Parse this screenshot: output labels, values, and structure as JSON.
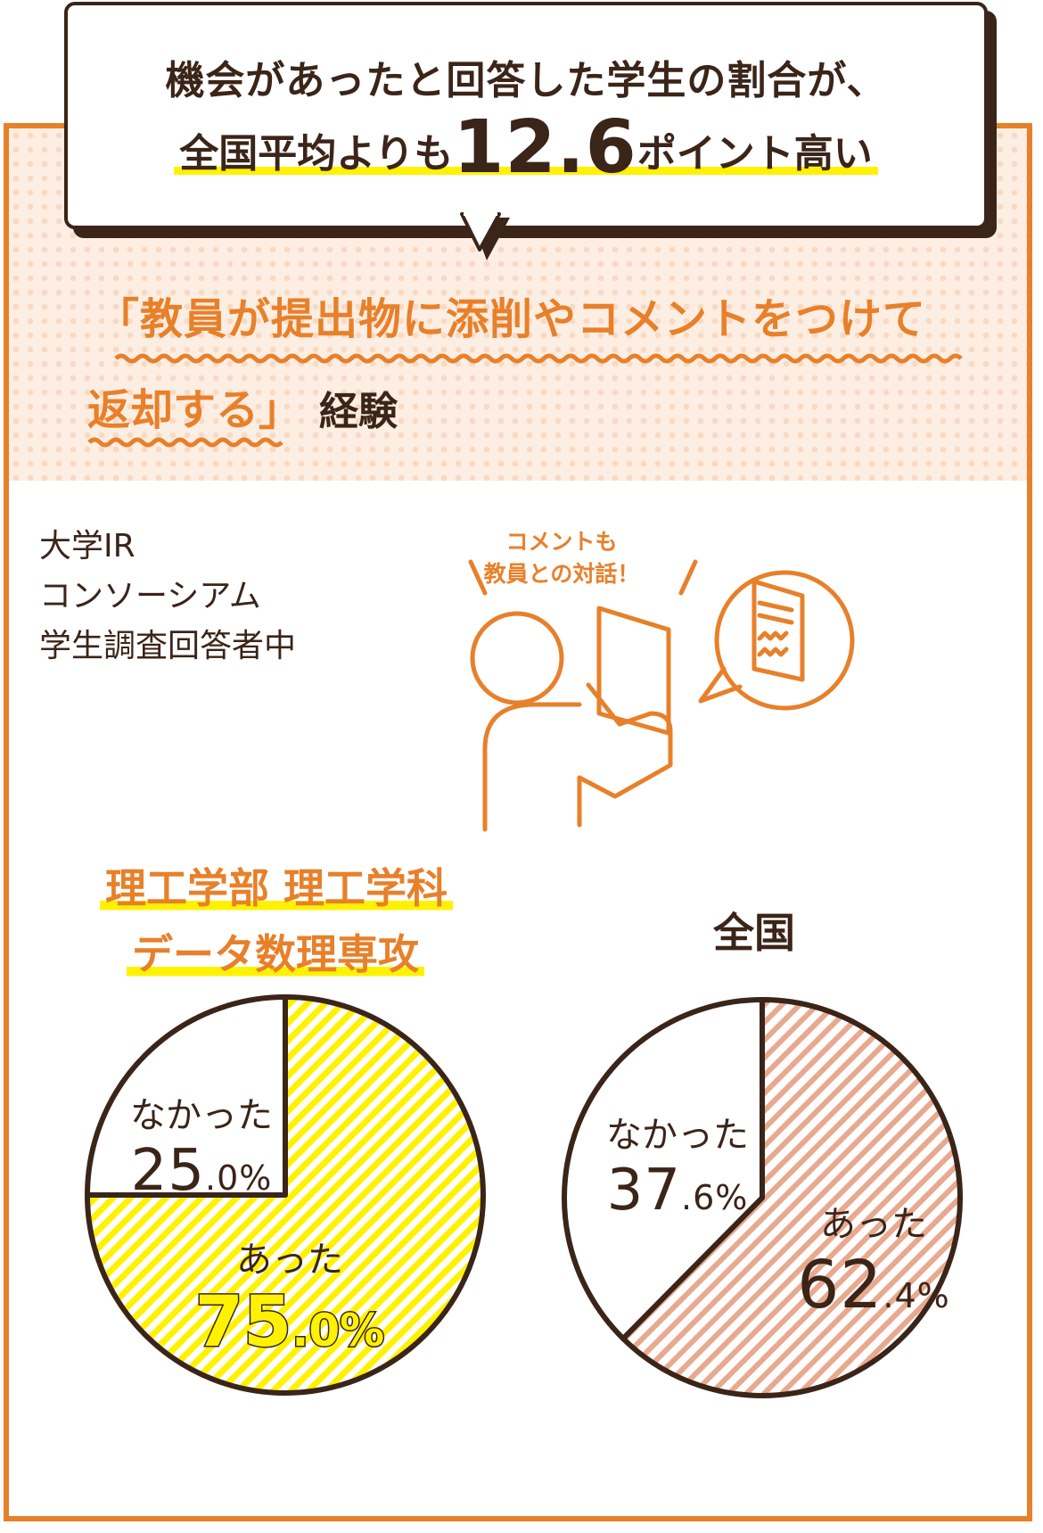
{
  "headline": {
    "line1": "機会があったと回答した学生の割合が、",
    "line2_prefix": "全国平均よりも",
    "line2_number": "12.6",
    "line2_suffix": "ポイント高い"
  },
  "title": {
    "part1": "「教員が提出物に添削やコメントをつけて",
    "part2": "返却する」",
    "part3": "経験"
  },
  "source": "大学IR\nコンソーシアム\n学生調査回答者中",
  "illustration": {
    "callout_line1": "コメントも",
    "callout_line2": "教員との対話！"
  },
  "colors": {
    "orange": "#e8802a",
    "brown": "#3b2418",
    "yellow": "#fff200",
    "pink_stripe": "#e8a98f"
  },
  "chart_data": [
    {
      "type": "pie",
      "title_line1": "理工学部 理工学科",
      "title_line2": "データ数理専攻",
      "slices": [
        {
          "label": "あった",
          "value": 75.0,
          "display_int": "75",
          "display_dec": ".0%"
        },
        {
          "label": "なかった",
          "value": 25.0,
          "display_int": "25",
          "display_dec": ".0%"
        }
      ]
    },
    {
      "type": "pie",
      "title": "全国",
      "slices": [
        {
          "label": "あった",
          "value": 62.4,
          "display_int": "62",
          "display_dec": ".4%"
        },
        {
          "label": "なかった",
          "value": 37.6,
          "display_int": "37",
          "display_dec": ".6%"
        }
      ]
    }
  ]
}
